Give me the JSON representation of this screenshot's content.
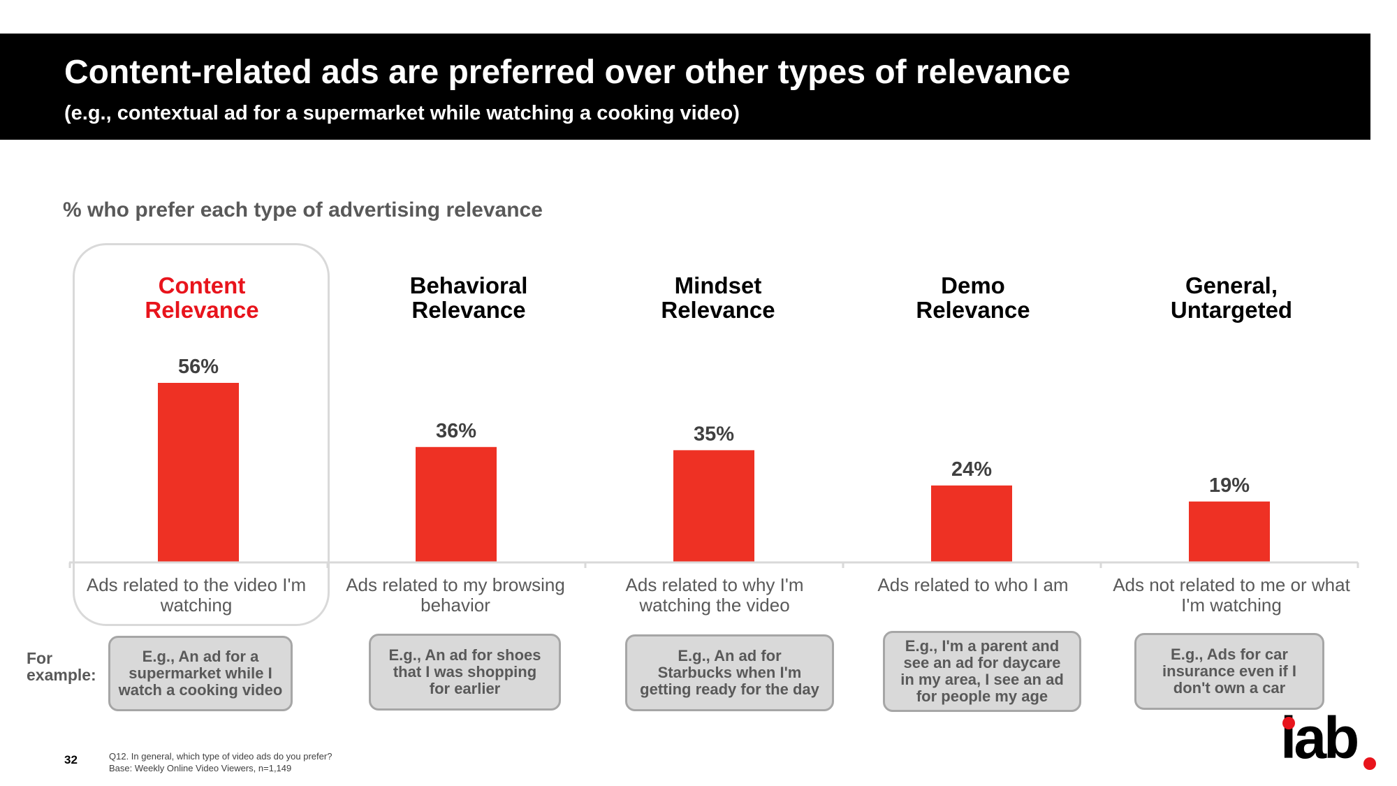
{
  "header": {
    "title": "Content-related ads are preferred over other types of relevance",
    "subtitle": "(e.g., contextual ad for a supermarket while watching a cooking video)"
  },
  "chart_label": "% who prefer each type of advertising relevance",
  "colors": {
    "bar": "#ee3124",
    "highlight": "#e8141c",
    "banner": "#000000"
  },
  "chart_data": {
    "type": "bar",
    "title": "% who prefer each type of advertising relevance",
    "categories": [
      "Content Relevance",
      "Behavioral Relevance",
      "Mindset Relevance",
      "Demo Relevance",
      "General, Untargeted"
    ],
    "values": [
      56,
      36,
      35,
      24,
      19
    ],
    "value_labels": [
      "56%",
      "36%",
      "35%",
      "24%",
      "19%"
    ],
    "ylim": [
      0,
      60
    ],
    "grid": false,
    "legend": "none"
  },
  "categories": [
    {
      "title_line1": "Content",
      "title_line2": "Relevance",
      "desc_line1": "Ads related to the video I'm",
      "desc_line2": "watching",
      "example_lines": [
        "E.g., An ad for a",
        "supermarket while I",
        "watch a cooking video"
      ]
    },
    {
      "title_line1": "Behavioral",
      "title_line2": "Relevance",
      "desc_line1": "Ads related to my browsing",
      "desc_line2": "behavior",
      "example_lines": [
        "E.g., An ad for shoes",
        "that I was shopping",
        "for earlier"
      ]
    },
    {
      "title_line1": "Mindset",
      "title_line2": "Relevance",
      "desc_line1": "Ads related to why I'm",
      "desc_line2": "watching the video",
      "example_lines": [
        "E.g., An ad for",
        "Starbucks when I'm",
        "getting ready for the day"
      ]
    },
    {
      "title_line1": "Demo",
      "title_line2": "Relevance",
      "desc_line1": "Ads related to who I am",
      "desc_line2": "",
      "example_lines": [
        "E.g., I'm a parent and",
        "see an ad for daycare",
        "in my area, I see an ad",
        "for people my age"
      ]
    },
    {
      "title_line1": "General,",
      "title_line2": "Untargeted",
      "desc_line1": "Ads not related to me or what",
      "desc_line2": "I'm watching",
      "example_lines": [
        "E.g., Ads for car",
        "insurance even if I",
        "don't own a car"
      ]
    }
  ],
  "for_example": {
    "line1": "For",
    "line2": "example:"
  },
  "footer": {
    "page_number": "32",
    "question": "Q12. In general, which type of video ads do you prefer?",
    "base": "Base: Weekly Online Video Viewers, n=1,149"
  },
  "logo": {
    "text": "iab",
    "icon": "iab-logo"
  }
}
